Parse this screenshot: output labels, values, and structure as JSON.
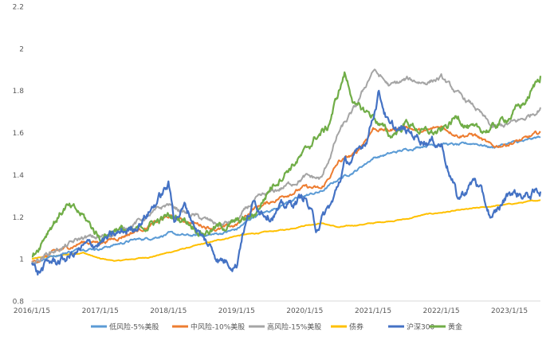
{
  "chart_data": {
    "type": "line",
    "title": "",
    "xlabel": "",
    "ylabel": "",
    "x_range": [
      "2016-01-15",
      "2023-06-30"
    ],
    "x_tick_labels": [
      "2016/1/15",
      "2017/1/15",
      "2018/1/15",
      "2019/1/15",
      "2020/1/15",
      "2021/1/15",
      "2022/1/15",
      "2023/1/15"
    ],
    "x_tick_dates": [
      "2016-01-15",
      "2017-01-15",
      "2018-01-15",
      "2019-01-15",
      "2020-01-15",
      "2021-01-15",
      "2022-01-15",
      "2023-01-15"
    ],
    "ylim": [
      0.8,
      2.2
    ],
    "y_ticks": [
      "0.8",
      "1",
      "1.2",
      "1.4",
      "1.6",
      "1.8",
      "2",
      "2.2"
    ],
    "grid": false,
    "legend_position": "bottom",
    "series": [
      {
        "name": "低风险-5%美股",
        "color": "#5b9bd5",
        "x": [
          "2016-01-15",
          "2016-04-15",
          "2016-07-15",
          "2016-10-15",
          "2017-01-15",
          "2017-04-15",
          "2017-07-15",
          "2017-10-15",
          "2018-01-15",
          "2018-04-15",
          "2018-07-15",
          "2018-10-15",
          "2019-01-15",
          "2019-04-15",
          "2019-07-15",
          "2019-10-15",
          "2020-01-15",
          "2020-04-15",
          "2020-07-15",
          "2020-10-15",
          "2021-01-15",
          "2021-04-15",
          "2021-07-15",
          "2021-10-15",
          "2022-01-15",
          "2022-04-15",
          "2022-07-15",
          "2022-10-15",
          "2023-01-15",
          "2023-04-15",
          "2023-06-30"
        ],
        "values": [
          0.98,
          1.01,
          1.03,
          1.05,
          1.05,
          1.07,
          1.09,
          1.1,
          1.12,
          1.11,
          1.11,
          1.12,
          1.14,
          1.2,
          1.23,
          1.27,
          1.3,
          1.32,
          1.38,
          1.42,
          1.48,
          1.5,
          1.52,
          1.54,
          1.55,
          1.54,
          1.55,
          1.53,
          1.55,
          1.56,
          1.58
        ]
      },
      {
        "name": "中风险-10%美股",
        "color": "#ed7d31",
        "x": [
          "2016-01-15",
          "2016-04-15",
          "2016-07-15",
          "2016-10-15",
          "2017-01-15",
          "2017-04-15",
          "2017-07-15",
          "2017-10-15",
          "2018-01-15",
          "2018-04-15",
          "2018-07-15",
          "2018-10-15",
          "2019-01-15",
          "2019-04-15",
          "2019-07-15",
          "2019-10-15",
          "2020-01-15",
          "2020-04-15",
          "2020-07-15",
          "2020-10-15",
          "2021-01-15",
          "2021-04-15",
          "2021-07-15",
          "2021-10-15",
          "2022-01-15",
          "2022-04-15",
          "2022-07-15",
          "2022-10-15",
          "2023-01-15",
          "2023-04-15",
          "2023-06-30"
        ],
        "values": [
          0.98,
          1.02,
          1.05,
          1.08,
          1.08,
          1.1,
          1.13,
          1.16,
          1.2,
          1.18,
          1.16,
          1.14,
          1.16,
          1.24,
          1.27,
          1.31,
          1.34,
          1.33,
          1.46,
          1.5,
          1.62,
          1.61,
          1.63,
          1.6,
          1.63,
          1.59,
          1.59,
          1.53,
          1.55,
          1.57,
          1.6
        ]
      },
      {
        "name": "高风险-15%美股",
        "color": "#a5a5a5",
        "x": [
          "2016-01-15",
          "2016-04-15",
          "2016-07-15",
          "2016-10-15",
          "2017-01-15",
          "2017-04-15",
          "2017-07-15",
          "2017-10-15",
          "2018-01-15",
          "2018-04-15",
          "2018-07-15",
          "2018-10-15",
          "2019-01-15",
          "2019-04-15",
          "2019-07-15",
          "2019-10-15",
          "2020-01-15",
          "2020-04-15",
          "2020-07-15",
          "2020-10-15",
          "2021-01-15",
          "2021-04-15",
          "2021-07-15",
          "2021-10-15",
          "2022-01-15",
          "2022-04-15",
          "2022-07-15",
          "2022-10-15",
          "2023-01-15",
          "2023-04-15",
          "2023-06-30"
        ],
        "values": [
          0.98,
          1.03,
          1.06,
          1.1,
          1.1,
          1.13,
          1.17,
          1.21,
          1.26,
          1.22,
          1.19,
          1.16,
          1.18,
          1.27,
          1.31,
          1.35,
          1.39,
          1.38,
          1.6,
          1.72,
          1.9,
          1.82,
          1.85,
          1.84,
          1.86,
          1.78,
          1.72,
          1.62,
          1.64,
          1.67,
          1.72
        ]
      },
      {
        "name": "债券",
        "color": "#ffc000",
        "x": [
          "2016-01-15",
          "2016-04-15",
          "2016-07-15",
          "2016-10-15",
          "2017-01-15",
          "2017-04-15",
          "2017-07-15",
          "2017-10-15",
          "2018-01-15",
          "2018-04-15",
          "2018-07-15",
          "2018-10-15",
          "2019-01-15",
          "2019-04-15",
          "2019-07-15",
          "2019-10-15",
          "2020-01-15",
          "2020-04-15",
          "2020-07-15",
          "2020-10-15",
          "2021-01-15",
          "2021-04-15",
          "2021-07-15",
          "2021-10-15",
          "2022-01-15",
          "2022-04-15",
          "2022-07-15",
          "2022-10-15",
          "2023-01-15",
          "2023-04-15",
          "2023-06-30"
        ],
        "values": [
          1.0,
          1.01,
          1.02,
          1.03,
          1.0,
          0.99,
          1.0,
          1.01,
          1.03,
          1.05,
          1.07,
          1.09,
          1.11,
          1.12,
          1.13,
          1.14,
          1.16,
          1.17,
          1.15,
          1.16,
          1.17,
          1.18,
          1.19,
          1.21,
          1.22,
          1.23,
          1.24,
          1.25,
          1.26,
          1.27,
          1.28
        ]
      },
      {
        "name": "沪深300",
        "color": "#4472c4",
        "x": [
          "2016-01-15",
          "2016-02-15",
          "2016-04-15",
          "2016-07-15",
          "2016-10-15",
          "2017-01-15",
          "2017-04-15",
          "2017-07-15",
          "2017-10-15",
          "2018-01-15",
          "2018-02-15",
          "2018-04-15",
          "2018-07-15",
          "2018-10-15",
          "2019-01-15",
          "2019-02-15",
          "2019-04-15",
          "2019-07-15",
          "2019-10-15",
          "2020-01-15",
          "2020-03-15",
          "2020-06-15",
          "2020-08-15",
          "2020-10-15",
          "2020-12-15",
          "2021-02-15",
          "2021-04-15",
          "2021-07-15",
          "2021-10-15",
          "2022-01-15",
          "2022-04-15",
          "2022-07-15",
          "2022-10-15",
          "2023-01-15",
          "2023-04-15",
          "2023-06-30"
        ],
        "values": [
          0.98,
          0.93,
          0.98,
          1.0,
          1.05,
          1.08,
          1.11,
          1.15,
          1.24,
          1.35,
          1.2,
          1.25,
          1.1,
          1.0,
          0.98,
          1.13,
          1.26,
          1.22,
          1.25,
          1.3,
          1.15,
          1.27,
          1.45,
          1.48,
          1.58,
          1.8,
          1.62,
          1.6,
          1.57,
          1.55,
          1.28,
          1.38,
          1.18,
          1.32,
          1.3,
          1.32
        ]
      },
      {
        "name": "黄金",
        "color": "#70ad47",
        "x": [
          "2016-01-15",
          "2016-04-15",
          "2016-07-15",
          "2016-10-15",
          "2017-01-15",
          "2017-04-15",
          "2017-07-15",
          "2017-10-15",
          "2018-01-15",
          "2018-04-15",
          "2018-07-15",
          "2018-10-15",
          "2019-01-15",
          "2019-04-15",
          "2019-07-15",
          "2019-10-15",
          "2020-01-15",
          "2020-03-15",
          "2020-05-15",
          "2020-08-15",
          "2020-10-15",
          "2021-01-15",
          "2021-04-15",
          "2021-07-15",
          "2021-10-15",
          "2022-01-15",
          "2022-04-15",
          "2022-07-15",
          "2022-10-15",
          "2023-01-15",
          "2023-04-15",
          "2023-06-30"
        ],
        "values": [
          1.0,
          1.15,
          1.25,
          1.2,
          1.1,
          1.15,
          1.12,
          1.17,
          1.2,
          1.19,
          1.13,
          1.15,
          1.17,
          1.2,
          1.34,
          1.43,
          1.5,
          1.58,
          1.62,
          1.88,
          1.72,
          1.68,
          1.58,
          1.65,
          1.6,
          1.6,
          1.68,
          1.6,
          1.62,
          1.68,
          1.75,
          1.87
        ]
      }
    ]
  }
}
